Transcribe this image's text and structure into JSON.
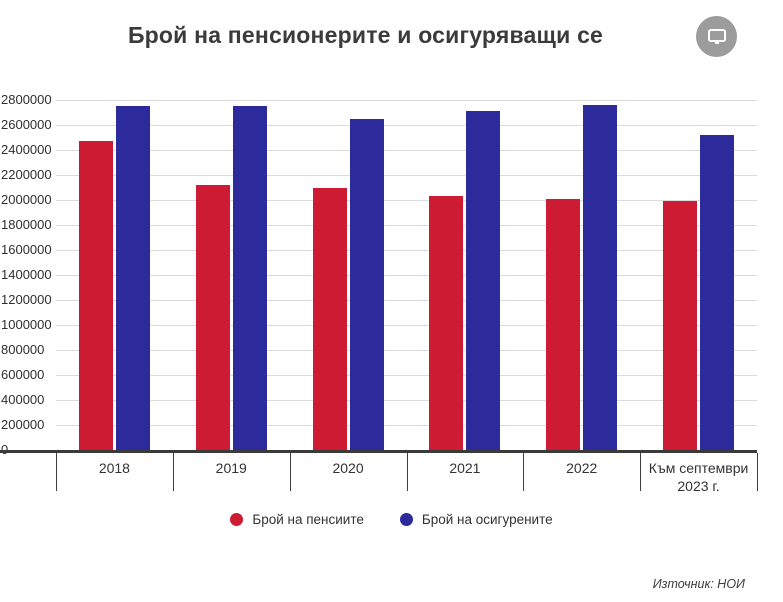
{
  "header": {
    "title": "Брой на пенсионерите и осигуряващи се"
  },
  "chart_data": {
    "type": "bar",
    "title": "Брой на пенсионерите и осигуряващи се",
    "categories": [
      "2018",
      "2019",
      "2020",
      "2021",
      "2022",
      "Към септември\n2023 г."
    ],
    "series": [
      {
        "name": "Брой на пенсиите",
        "color": "#cd1b33",
        "values": [
          2470000,
          2120000,
          2100000,
          2035000,
          2005000,
          1995000
        ]
      },
      {
        "name": "Брой на осигурените",
        "color": "#2d2a9b",
        "values": [
          2750000,
          2755000,
          2650000,
          2710000,
          2760000,
          2520000
        ]
      }
    ],
    "ylim": [
      0,
      2800000
    ],
    "ytick_step": 200000,
    "yticks": [
      0,
      200000,
      400000,
      600000,
      800000,
      1000000,
      1200000,
      1400000,
      1600000,
      1800000,
      2000000,
      2200000,
      2400000,
      2600000,
      2800000
    ],
    "grid": true,
    "legend_position": "bottom",
    "source": "Източник: НОИ"
  },
  "icons": {
    "present_button": "monitor-icon"
  },
  "colors": {
    "red": "#cd1b33",
    "blue": "#2d2a9b",
    "gridline": "#dbdbdb",
    "axis": "#3a3a3a",
    "button_gray": "#9c9c9c"
  }
}
